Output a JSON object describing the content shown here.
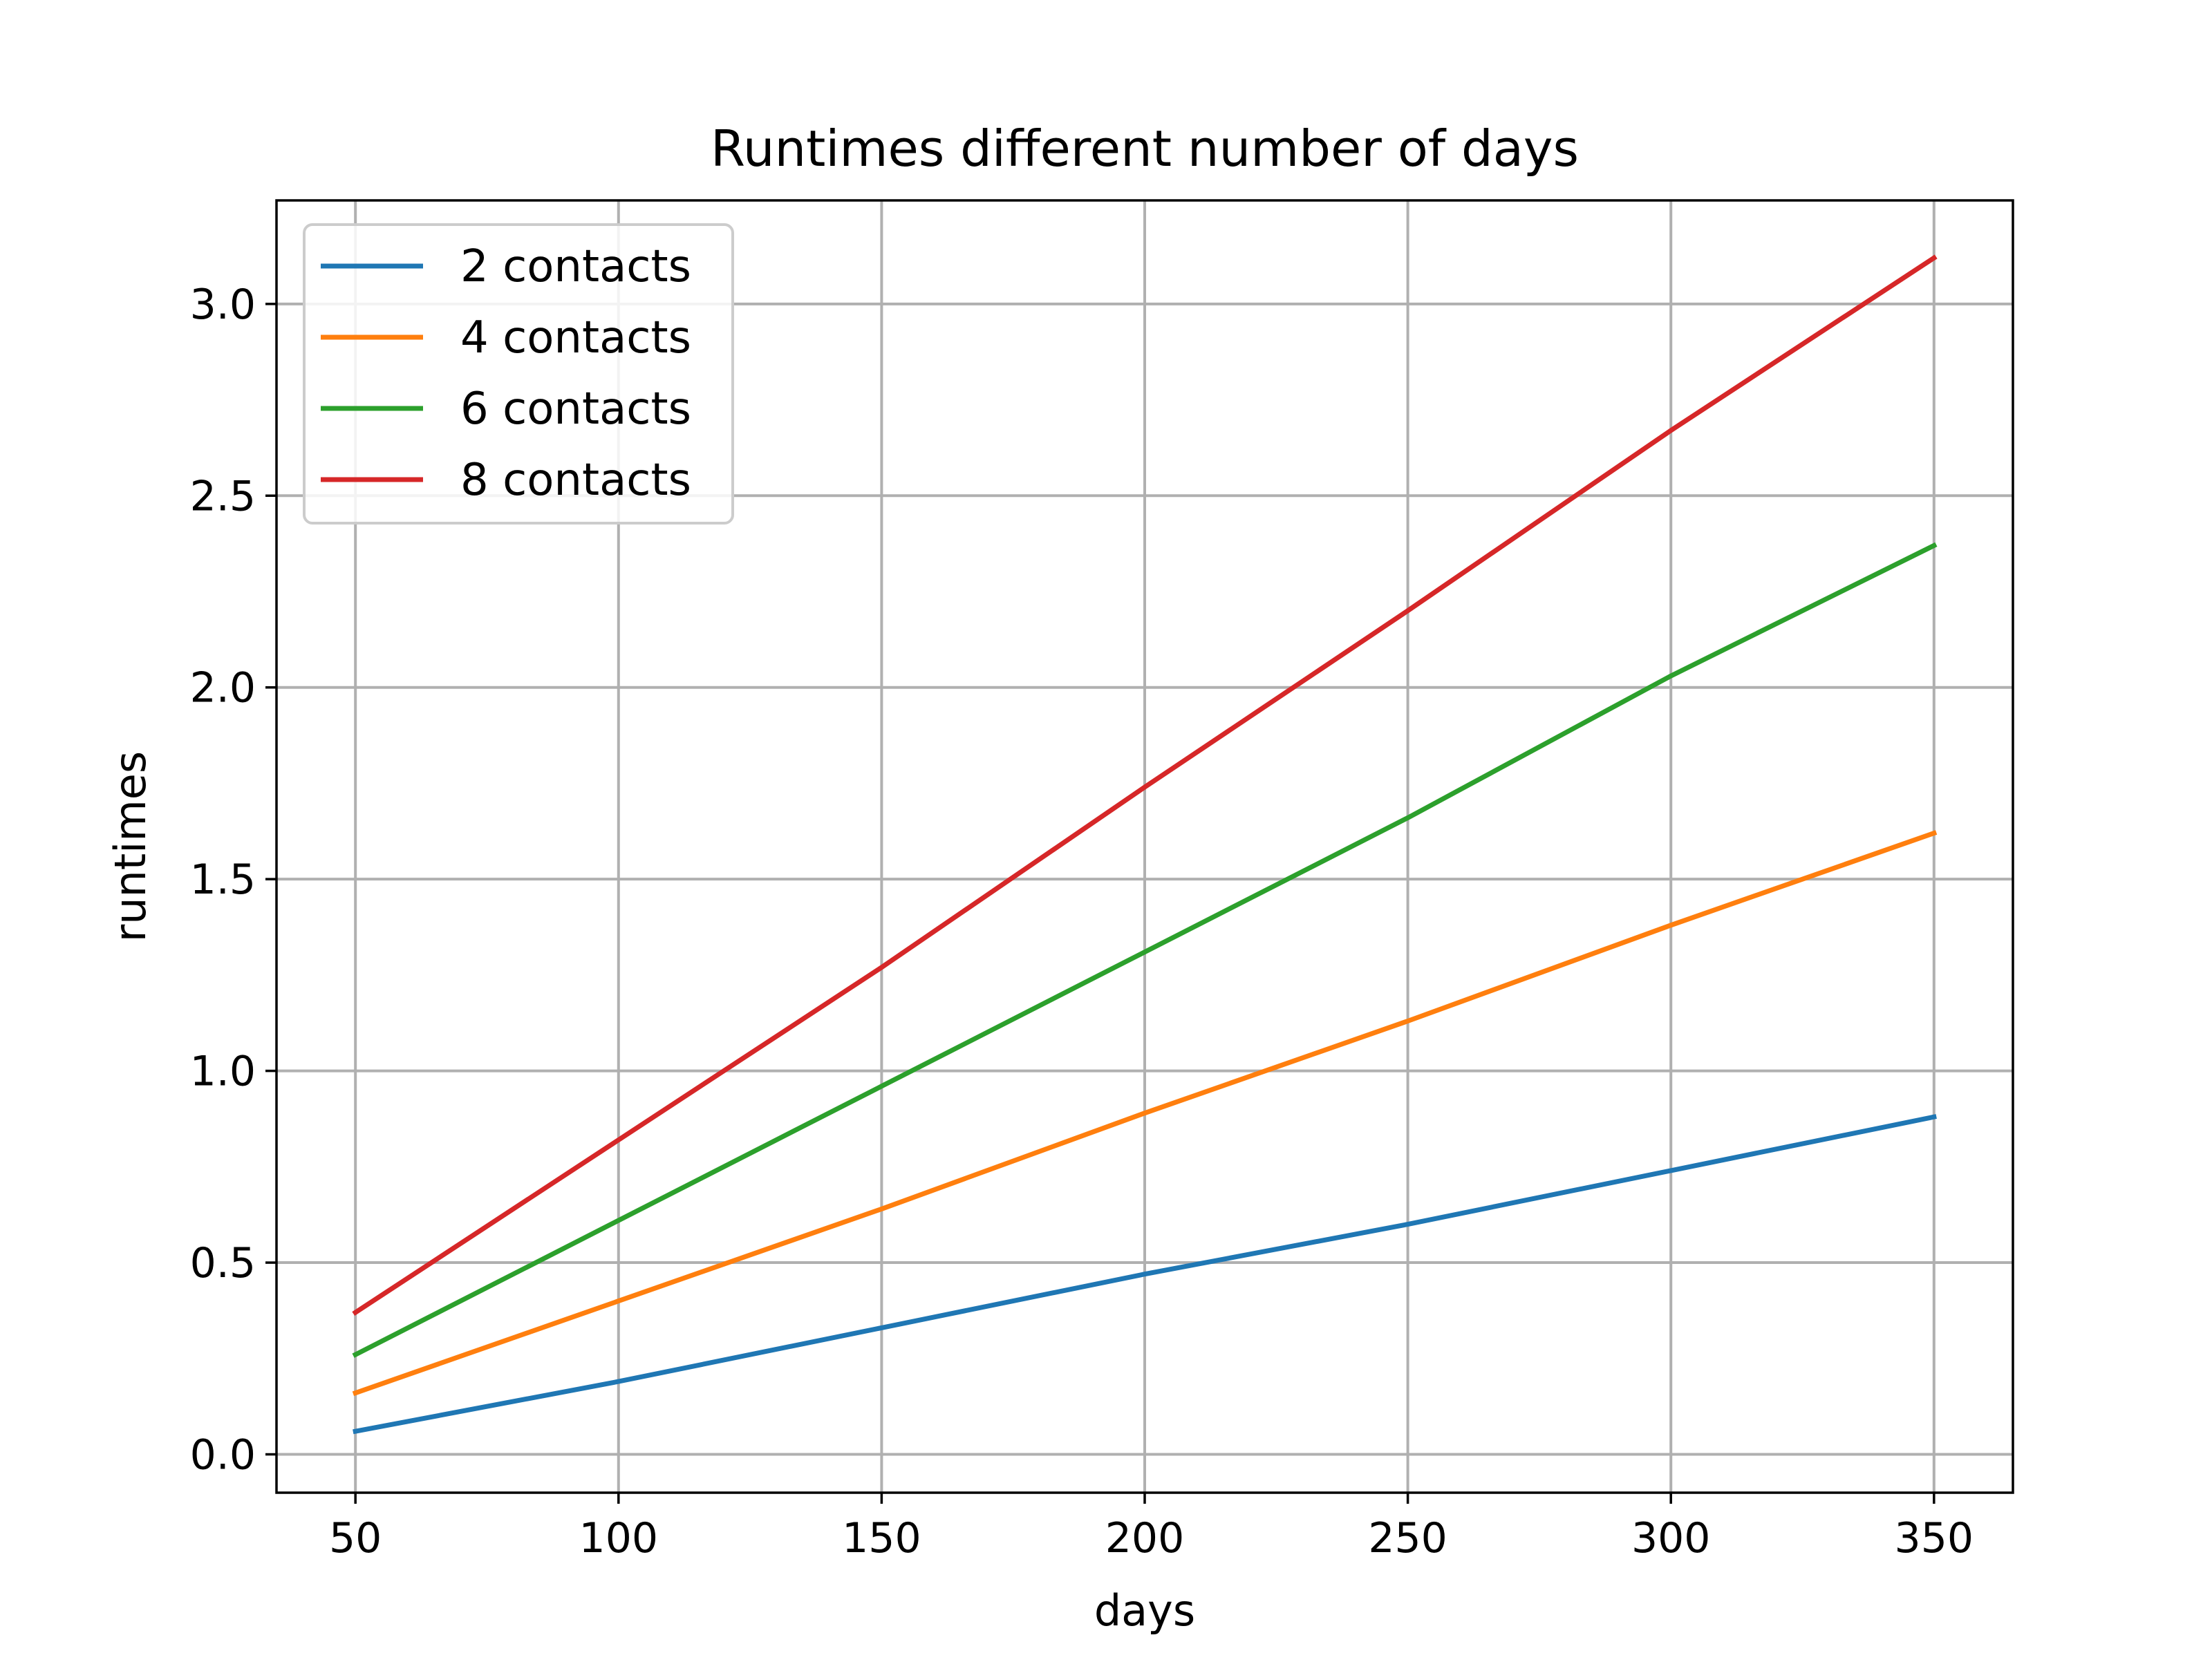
{
  "chart_data": {
    "type": "line",
    "title": "Runtimes different number of days",
    "xlabel": "days",
    "ylabel": "runtimes",
    "x": [
      50,
      100,
      150,
      200,
      250,
      300,
      350
    ],
    "xlim": [
      35,
      365
    ],
    "ylim": [
      -0.1,
      3.27
    ],
    "xticks": [
      50,
      100,
      150,
      200,
      250,
      300,
      350
    ],
    "xtick_labels": [
      "50",
      "100",
      "150",
      "200",
      "250",
      "300",
      "350"
    ],
    "yticks": [
      0.0,
      0.5,
      1.0,
      1.5,
      2.0,
      2.5,
      3.0
    ],
    "ytick_labels": [
      "0.0",
      "0.5",
      "1.0",
      "1.5",
      "2.0",
      "2.5",
      "3.0"
    ],
    "grid": true,
    "legend_position": "top-left",
    "series": [
      {
        "name": "2 contacts",
        "color": "#1f77b4",
        "values": [
          0.06,
          0.19,
          0.33,
          0.47,
          0.6,
          0.74,
          0.88
        ]
      },
      {
        "name": "4 contacts",
        "color": "#ff7f0e",
        "values": [
          0.16,
          0.4,
          0.64,
          0.89,
          1.13,
          1.38,
          1.62
        ]
      },
      {
        "name": "6 contacts",
        "color": "#2ca02c",
        "values": [
          0.26,
          0.61,
          0.96,
          1.31,
          1.66,
          2.03,
          2.37
        ]
      },
      {
        "name": "8 contacts",
        "color": "#d62728",
        "values": [
          0.37,
          0.82,
          1.27,
          1.74,
          2.2,
          2.67,
          3.12
        ]
      }
    ]
  }
}
